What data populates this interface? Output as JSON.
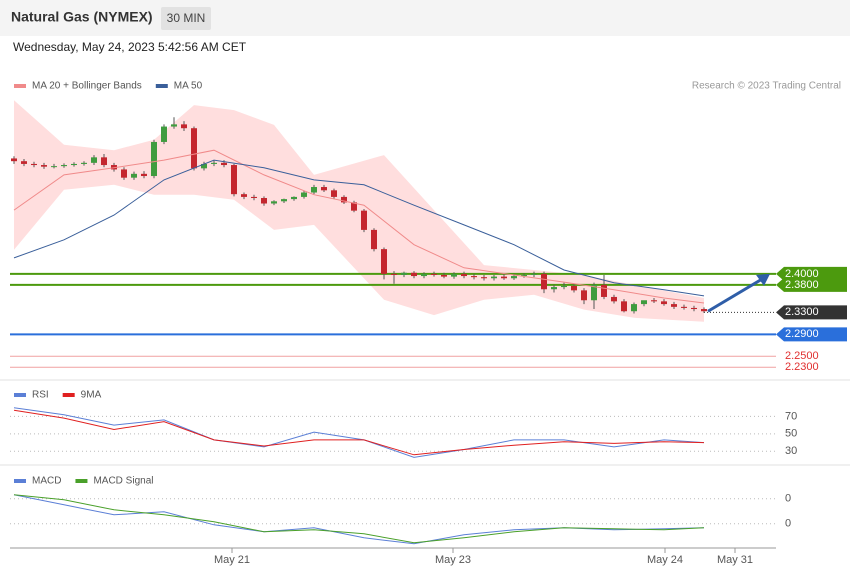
{
  "header": {
    "title": "Natural Gas (NYMEX)",
    "interval": "30 MIN",
    "timestamp": "Wednesday, May 24, 2023 5:42:56 AM CET",
    "credit": "Research © 2023 Trading Central"
  },
  "chart_data": [
    {
      "type": "candlestick",
      "xlim": [
        -0.4,
        76.2
      ],
      "ylim": [
        2.216,
        2.78
      ],
      "up_color": "#3f9c3f",
      "down_color": "#c4262e",
      "open": [
        2.61,
        2.605,
        2.6,
        2.598,
        2.595,
        2.596,
        2.598,
        2.6,
        2.602,
        2.612,
        2.598,
        2.59,
        2.575,
        2.582,
        2.578,
        2.64,
        2.668,
        2.672,
        2.665,
        2.592,
        2.6,
        2.602,
        2.598,
        2.545,
        2.54,
        2.538,
        2.528,
        2.532,
        2.536,
        2.54,
        2.548,
        2.558,
        2.552,
        2.54,
        2.53,
        2.515,
        2.48,
        2.445,
        2.4,
        2.398,
        2.402,
        2.396,
        2.4,
        2.398,
        2.395,
        2.4,
        2.396,
        2.394,
        2.392,
        2.395,
        2.392,
        2.396,
        2.398,
        2.4,
        2.372,
        2.376,
        2.378,
        2.37,
        2.352,
        2.38,
        2.358,
        2.35,
        2.332,
        2.345,
        2.352,
        2.35,
        2.345,
        2.34,
        2.338,
        2.336
      ],
      "high": [
        2.614,
        2.609,
        2.604,
        2.602,
        2.6,
        2.601,
        2.603,
        2.605,
        2.616,
        2.618,
        2.602,
        2.594,
        2.586,
        2.587,
        2.644,
        2.672,
        2.685,
        2.678,
        2.668,
        2.604,
        2.606,
        2.607,
        2.6,
        2.548,
        2.544,
        2.541,
        2.534,
        2.537,
        2.541,
        2.551,
        2.562,
        2.562,
        2.555,
        2.543,
        2.533,
        2.518,
        2.483,
        2.448,
        2.405,
        2.404,
        2.405,
        2.403,
        2.404,
        2.402,
        2.403,
        2.404,
        2.4,
        2.398,
        2.398,
        2.399,
        2.4,
        2.401,
        2.404,
        2.404,
        2.38,
        2.384,
        2.382,
        2.374,
        2.384,
        2.398,
        2.362,
        2.354,
        2.348,
        2.351,
        2.356,
        2.354,
        2.349,
        2.344,
        2.342,
        2.339
      ],
      "low": [
        2.6,
        2.596,
        2.594,
        2.591,
        2.592,
        2.593,
        2.595,
        2.597,
        2.598,
        2.594,
        2.586,
        2.571,
        2.571,
        2.574,
        2.574,
        2.636,
        2.664,
        2.66,
        2.588,
        2.588,
        2.596,
        2.594,
        2.541,
        2.536,
        2.534,
        2.524,
        2.525,
        2.529,
        2.533,
        2.537,
        2.545,
        2.549,
        2.537,
        2.527,
        2.512,
        2.476,
        2.441,
        2.39,
        2.382,
        2.394,
        2.392,
        2.392,
        2.395,
        2.392,
        2.391,
        2.392,
        2.39,
        2.388,
        2.388,
        2.389,
        2.389,
        2.393,
        2.394,
        2.365,
        2.366,
        2.372,
        2.366,
        2.345,
        2.336,
        2.354,
        2.346,
        2.33,
        2.328,
        2.341,
        2.347,
        2.342,
        2.336,
        2.335,
        2.332,
        2.329
      ],
      "close": [
        2.605,
        2.6,
        2.598,
        2.595,
        2.596,
        2.598,
        2.6,
        2.602,
        2.612,
        2.598,
        2.59,
        2.575,
        2.582,
        2.578,
        2.64,
        2.668,
        2.672,
        2.665,
        2.592,
        2.6,
        2.602,
        2.598,
        2.545,
        2.54,
        2.538,
        2.528,
        2.532,
        2.536,
        2.54,
        2.548,
        2.558,
        2.552,
        2.54,
        2.53,
        2.515,
        2.48,
        2.445,
        2.4,
        2.398,
        2.402,
        2.396,
        2.4,
        2.398,
        2.395,
        2.4,
        2.396,
        2.394,
        2.392,
        2.395,
        2.392,
        2.396,
        2.398,
        2.4,
        2.372,
        2.376,
        2.378,
        2.37,
        2.352,
        2.38,
        2.358,
        2.35,
        2.332,
        2.345,
        2.352,
        2.35,
        2.345,
        2.34,
        2.338,
        2.336,
        2.332
      ],
      "bands": {
        "color": "#ffdede",
        "x": [
          0,
          5,
          10,
          14,
          18,
          22,
          26,
          30,
          37,
          42,
          47,
          52,
          57,
          62,
          69
        ],
        "upper": [
          2.716,
          2.635,
          2.625,
          2.644,
          2.707,
          2.698,
          2.671,
          2.58,
          2.616,
          2.516,
          2.416,
          2.407,
          2.398,
          2.38,
          2.356
        ],
        "lower": [
          2.444,
          2.553,
          2.562,
          2.544,
          2.544,
          2.535,
          2.48,
          2.489,
          2.353,
          2.325,
          2.353,
          2.362,
          2.335,
          2.32,
          2.313
        ]
      },
      "series": [
        {
          "name": "MA 20 + Bollinger Bands",
          "color": "#f08a8a",
          "x": [
            0,
            5,
            10,
            15,
            20,
            25,
            30,
            35,
            40,
            45,
            50,
            55,
            60,
            65,
            69
          ],
          "values": [
            2.516,
            2.58,
            2.593,
            2.607,
            2.625,
            2.58,
            2.544,
            2.525,
            2.453,
            2.411,
            2.398,
            2.385,
            2.371,
            2.356,
            2.347
          ]
        },
        {
          "name": "MA 50",
          "color": "#3a5f9a",
          "x": [
            0,
            5,
            10,
            15,
            20,
            25,
            30,
            35,
            40,
            45,
            50,
            55,
            60,
            65,
            69
          ],
          "values": [
            2.429,
            2.462,
            2.507,
            2.571,
            2.607,
            2.593,
            2.571,
            2.562,
            2.525,
            2.489,
            2.453,
            2.407,
            2.384,
            2.371,
            2.36
          ]
        }
      ],
      "levels": [
        {
          "value": 2.4,
          "label": "2.4000",
          "color": "#4c9a0e"
        },
        {
          "value": 2.38,
          "label": "2.3800",
          "color": "#4c9a0e"
        },
        {
          "value": 2.33,
          "label": "2.3300",
          "color": "#333333"
        },
        {
          "value": 2.29,
          "label": "2.2900",
          "color": "#2a6fdb"
        },
        {
          "value": 2.25,
          "label": "2.2500",
          "color": "#e03030"
        },
        {
          "value": 2.23,
          "label": "2.2300",
          "color": "#e03030"
        }
      ]
    },
    {
      "type": "line",
      "ylim": [
        20,
        106
      ],
      "yticks": [
        30,
        50,
        70
      ],
      "grid": true,
      "series": [
        {
          "name": "RSI",
          "color": "#5b7fd6",
          "x": [
            0,
            5,
            10,
            15,
            20,
            25,
            30,
            35,
            40,
            45,
            50,
            55,
            60,
            65,
            69
          ],
          "values": [
            80,
            72,
            60,
            66,
            43,
            35,
            52,
            43,
            23,
            32,
            43,
            43,
            35,
            43,
            40
          ]
        },
        {
          "name": "9MA",
          "color": "#e02020",
          "x": [
            0,
            5,
            10,
            15,
            20,
            25,
            30,
            35,
            40,
            45,
            50,
            55,
            60,
            65,
            69
          ],
          "values": [
            77,
            68,
            55,
            64,
            43,
            36,
            43,
            43,
            26,
            32,
            37,
            41,
            39,
            41,
            40
          ]
        }
      ]
    },
    {
      "type": "line",
      "ylim": [
        -0.017,
        0.043
      ],
      "yticks": [
        {
          "value": 0.02,
          "label": "0"
        },
        {
          "value": 0,
          "label": "0"
        }
      ],
      "grid": true,
      "xticks": [
        {
          "value": 21.8,
          "label": "May 21"
        },
        {
          "value": 43.9,
          "label": "May 23"
        },
        {
          "value": 65.1,
          "label": "May 24"
        },
        {
          "value": 72.1,
          "label": "May 31"
        }
      ],
      "series": [
        {
          "name": "MACD",
          "color": "#5b7fd6",
          "x": [
            0,
            5,
            10,
            15,
            20,
            25,
            30,
            35,
            40,
            45,
            50,
            55,
            60,
            65,
            69
          ],
          "values": [
            0.0232,
            0.0152,
            0.0072,
            0.0096,
            -0.0008,
            -0.0064,
            -0.0032,
            -0.0112,
            -0.016,
            -0.0088,
            -0.0048,
            -0.0032,
            -0.0048,
            -0.004,
            -0.0032
          ]
        },
        {
          "name": "MACD Signal",
          "color": "#4aa02a",
          "x": [
            0,
            5,
            10,
            15,
            20,
            25,
            30,
            35,
            40,
            45,
            50,
            55,
            60,
            65,
            69
          ],
          "values": [
            0.0232,
            0.0192,
            0.0112,
            0.0072,
            0.0016,
            -0.0064,
            -0.0048,
            -0.008,
            -0.0152,
            -0.0112,
            -0.0064,
            -0.0032,
            -0.004,
            -0.0048,
            -0.0032
          ]
        }
      ]
    }
  ]
}
